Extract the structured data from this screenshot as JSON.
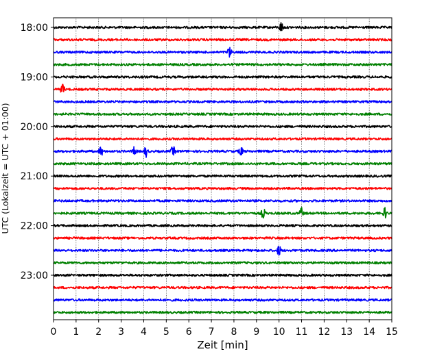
{
  "chart_data": {
    "type": "line",
    "title": "",
    "xlabel": "Zeit  [min]",
    "ylabel": "UTC (Lokalzeit = UTC + 01:00)",
    "xlim": [
      0,
      15
    ],
    "x_ticks": [
      "0",
      "1",
      "2",
      "3",
      "4",
      "5",
      "6",
      "7",
      "8",
      "9",
      "10",
      "11",
      "12",
      "13",
      "14",
      "15"
    ],
    "y_tick_labels": [
      "18:00",
      "19:00",
      "20:00",
      "21:00",
      "22:00",
      "23:00"
    ],
    "grid": "vertical dotted lines at every minute",
    "trace_interval_minutes": 15,
    "color_cycle": [
      "#000000",
      "#ff0000",
      "#0000ff",
      "#008000"
    ],
    "traces": [
      {
        "start": "18:00",
        "events_min": [
          10.1
        ]
      },
      {
        "start": "18:15",
        "events_min": []
      },
      {
        "start": "18:30",
        "events_min": [
          7.8
        ]
      },
      {
        "start": "18:45",
        "events_min": []
      },
      {
        "start": "19:00",
        "events_min": []
      },
      {
        "start": "19:15",
        "events_min": [
          0.4
        ]
      },
      {
        "start": "19:30",
        "events_min": []
      },
      {
        "start": "19:45",
        "events_min": []
      },
      {
        "start": "20:00",
        "events_min": []
      },
      {
        "start": "20:15",
        "events_min": []
      },
      {
        "start": "20:30",
        "events_min": [
          2.1,
          3.6,
          4.1,
          5.3,
          8.3
        ]
      },
      {
        "start": "20:45",
        "events_min": []
      },
      {
        "start": "21:00",
        "events_min": []
      },
      {
        "start": "21:15",
        "events_min": []
      },
      {
        "start": "21:30",
        "events_min": []
      },
      {
        "start": "21:45",
        "events_min": [
          9.3,
          11.0,
          14.7
        ]
      },
      {
        "start": "22:00",
        "events_min": []
      },
      {
        "start": "22:15",
        "events_min": []
      },
      {
        "start": "22:30",
        "events_min": [
          10.0
        ]
      },
      {
        "start": "22:45",
        "events_min": []
      },
      {
        "start": "23:00",
        "events_min": []
      },
      {
        "start": "23:15",
        "events_min": []
      },
      {
        "start": "23:30",
        "events_min": []
      },
      {
        "start": "23:45",
        "events_min": []
      }
    ]
  }
}
